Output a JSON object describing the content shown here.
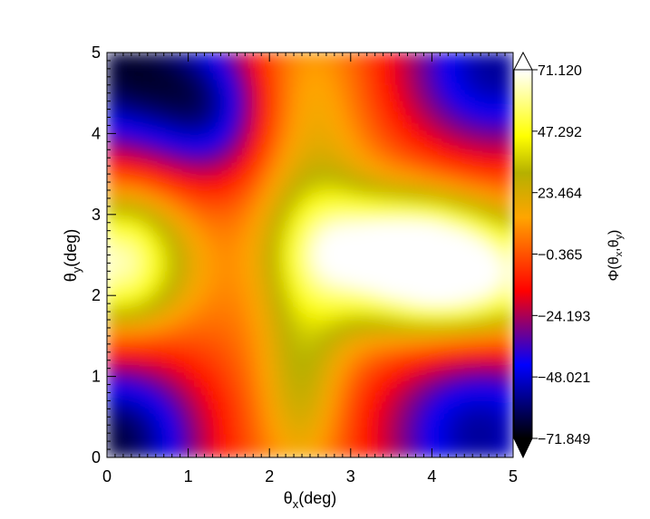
{
  "chart_data": {
    "type": "heatmap",
    "title": "",
    "xlabel": {
      "main": "θ",
      "sub": "x",
      "tail": "(deg)"
    },
    "ylabel": {
      "main": "θ",
      "sub": "y",
      "tail": "(deg)"
    },
    "xlim": [
      0,
      5
    ],
    "ylim": [
      0,
      5
    ],
    "x_ticks": [
      "0",
      "1",
      "2",
      "3",
      "4",
      "5"
    ],
    "y_ticks": [
      "0",
      "1",
      "2",
      "3",
      "4",
      "5"
    ],
    "colorbar": {
      "label": {
        "pre": "Φ(θ",
        "sub1": "x",
        "mid": ",θ",
        "sub2": "y",
        "post": ")"
      },
      "range": [
        -71.849,
        71.12
      ],
      "ticks": [
        "71.120",
        "47.292",
        "23.464",
        "−0.365",
        "−24.193",
        "−48.021",
        "−71.849"
      ],
      "extend": "both",
      "colormap": [
        "#000000",
        "#0000ff",
        "#ff0000",
        "#ffa500",
        "#ffff00",
        "#ffffff"
      ]
    },
    "grid": false,
    "field_description": "Smooth 2D field on 0–5 × 0–5 deg; high (yellow/white) plateaus at left and right around θy≈2.4, an orange/olive vertical band near θx≈2.5, blue/black lows in the four corners.",
    "field_features": [
      {
        "x": 4.4,
        "y": 2.2,
        "value": 70,
        "spread_x": 0.9,
        "spread_y": 0.55
      },
      {
        "x": 3.6,
        "y": 2.6,
        "value": 50,
        "spread_x": 0.7,
        "spread_y": 0.5
      },
      {
        "x": 0.15,
        "y": 2.4,
        "value": 62,
        "spread_x": 0.55,
        "spread_y": 0.6
      },
      {
        "x": 2.6,
        "y": 2.6,
        "value": 35,
        "spread_x": 0.45,
        "spread_y": 0.7
      },
      {
        "x": 2.4,
        "y": 0.9,
        "value": 25,
        "spread_x": 0.35,
        "spread_y": 0.8
      },
      {
        "x": 2.5,
        "y": 4.4,
        "value": 15,
        "spread_x": 0.5,
        "spread_y": 0.8
      },
      {
        "x": 0.2,
        "y": 4.8,
        "value": -70,
        "spread_x": 0.9,
        "spread_y": 0.8
      },
      {
        "x": 4.8,
        "y": 4.8,
        "value": -60,
        "spread_x": 0.9,
        "spread_y": 0.8
      },
      {
        "x": 0.1,
        "y": 0.2,
        "value": -70,
        "spread_x": 0.8,
        "spread_y": 0.8
      },
      {
        "x": 4.6,
        "y": 0.3,
        "value": -60,
        "spread_x": 0.9,
        "spread_y": 0.9
      },
      {
        "x": 1.3,
        "y": 4.2,
        "value": -35,
        "spread_x": 0.5,
        "spread_y": 0.6
      }
    ]
  }
}
